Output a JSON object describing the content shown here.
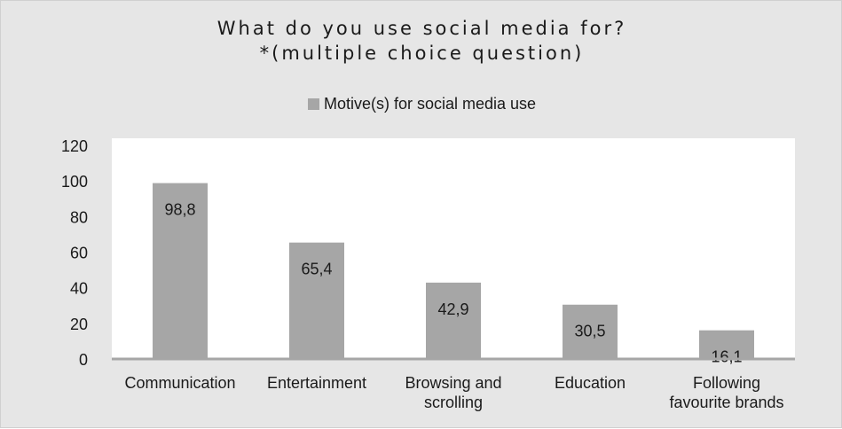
{
  "chart_data": {
    "type": "bar",
    "title_line1": "What do you use social media for?",
    "title_line2": "*(multiple choice question)",
    "xlabel": "",
    "ylabel": "",
    "categories": [
      "Communication",
      "Entertainment",
      "Browsing and scrolling",
      "Education",
      "Following favourite brands"
    ],
    "categories_display": [
      [
        "Communication"
      ],
      [
        "Entertainment"
      ],
      [
        "Browsing and",
        "scrolling"
      ],
      [
        "Education"
      ],
      [
        "Following",
        "favourite brands"
      ]
    ],
    "series": [
      {
        "name": "Motive(s) for social media use",
        "values": [
          98.8,
          65.4,
          42.9,
          30.5,
          16.1
        ]
      }
    ],
    "data_labels": [
      "98,8",
      "65,4",
      "42,9",
      "30,5",
      "16,1"
    ],
    "yticks": [
      0,
      20,
      40,
      60,
      80,
      100,
      120
    ],
    "ylim": [
      0,
      120
    ],
    "grid": false,
    "legend_position": "top-center",
    "colors": {
      "background": "#e6e6e6",
      "plot_area": "#ffffff",
      "bar": "#a6a6a6",
      "axis": "#a6a6a6",
      "text": "#1a1a1a"
    }
  }
}
